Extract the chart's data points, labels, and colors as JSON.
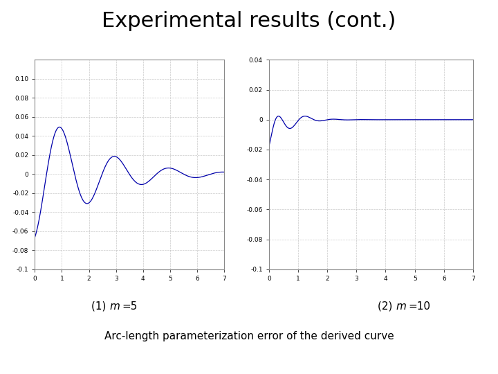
{
  "title": "Experimental results (cont.)",
  "title_fontsize": 22,
  "subtitle": "Arc-length parameterization error of the derived curve",
  "subtitle_fontsize": 11,
  "label_fontsize": 11,
  "plot1_xlim": [
    0,
    7
  ],
  "plot1_ylim": [
    -0.1,
    0.12
  ],
  "plot1_yticks": [
    -0.1,
    -0.08,
    -0.06,
    -0.04,
    -0.02,
    0,
    0.02,
    0.04,
    0.06,
    0.08,
    0.1
  ],
  "plot1_ytick_labels": [
    "-0.1",
    "-0.08",
    "-0.06",
    "-0.04",
    "-0.02",
    "0",
    "0.02",
    "0.04",
    "0.06",
    "0.08",
    "0.10"
  ],
  "plot1_xticks": [
    0,
    1,
    2,
    3,
    4,
    5,
    6,
    7
  ],
  "plot2_xlim": [
    0,
    7
  ],
  "plot2_ylim": [
    -0.1,
    0.04
  ],
  "plot2_yticks": [
    -0.1,
    -0.08,
    -0.06,
    -0.04,
    -0.02,
    0,
    0.02,
    0.04
  ],
  "plot2_ytick_labels": [
    "-0.1",
    "-0.08",
    "-0.06",
    "-0.04",
    "-0.02",
    "0",
    "0.02",
    "0.04"
  ],
  "plot2_xticks": [
    0,
    1,
    2,
    3,
    4,
    5,
    6,
    7
  ],
  "line_color": "#0000AA",
  "bg_color": "#ffffff",
  "grid_color": "#bbbbbb"
}
